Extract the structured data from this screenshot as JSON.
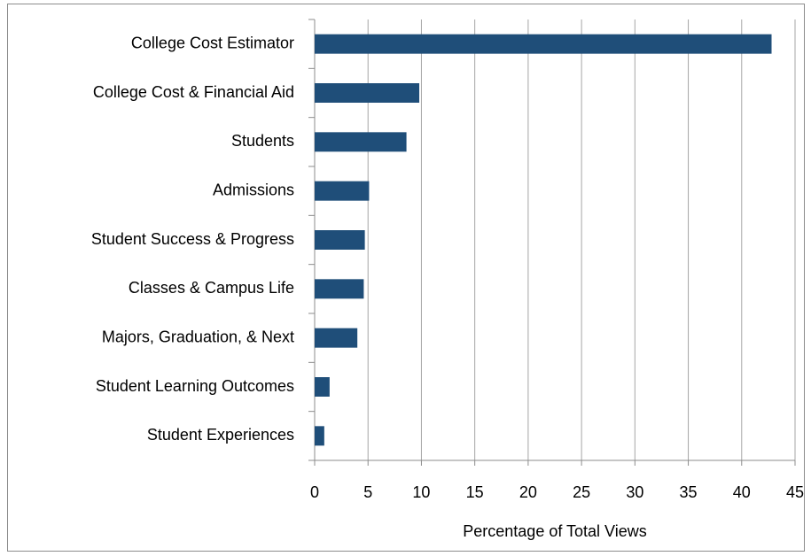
{
  "chart_data": {
    "type": "bar",
    "orientation": "horizontal",
    "categories": [
      "College Cost Estimator",
      "College Cost & Financial Aid",
      "Students",
      "Admissions",
      "Student Success & Progress",
      "Classes & Campus Life",
      "Majors, Graduation, & Next",
      "Student Learning Outcomes",
      "Student Experiences"
    ],
    "values": [
      42.8,
      9.8,
      8.6,
      5.1,
      4.7,
      4.6,
      4.0,
      1.4,
      0.9
    ],
    "color": "#1f4e79",
    "x_label": "Percentage of Total Views",
    "xlim": [
      0,
      45
    ],
    "xticks": [
      0,
      5,
      10,
      15,
      20,
      25,
      30,
      35,
      40,
      45
    ],
    "grid": true
  }
}
